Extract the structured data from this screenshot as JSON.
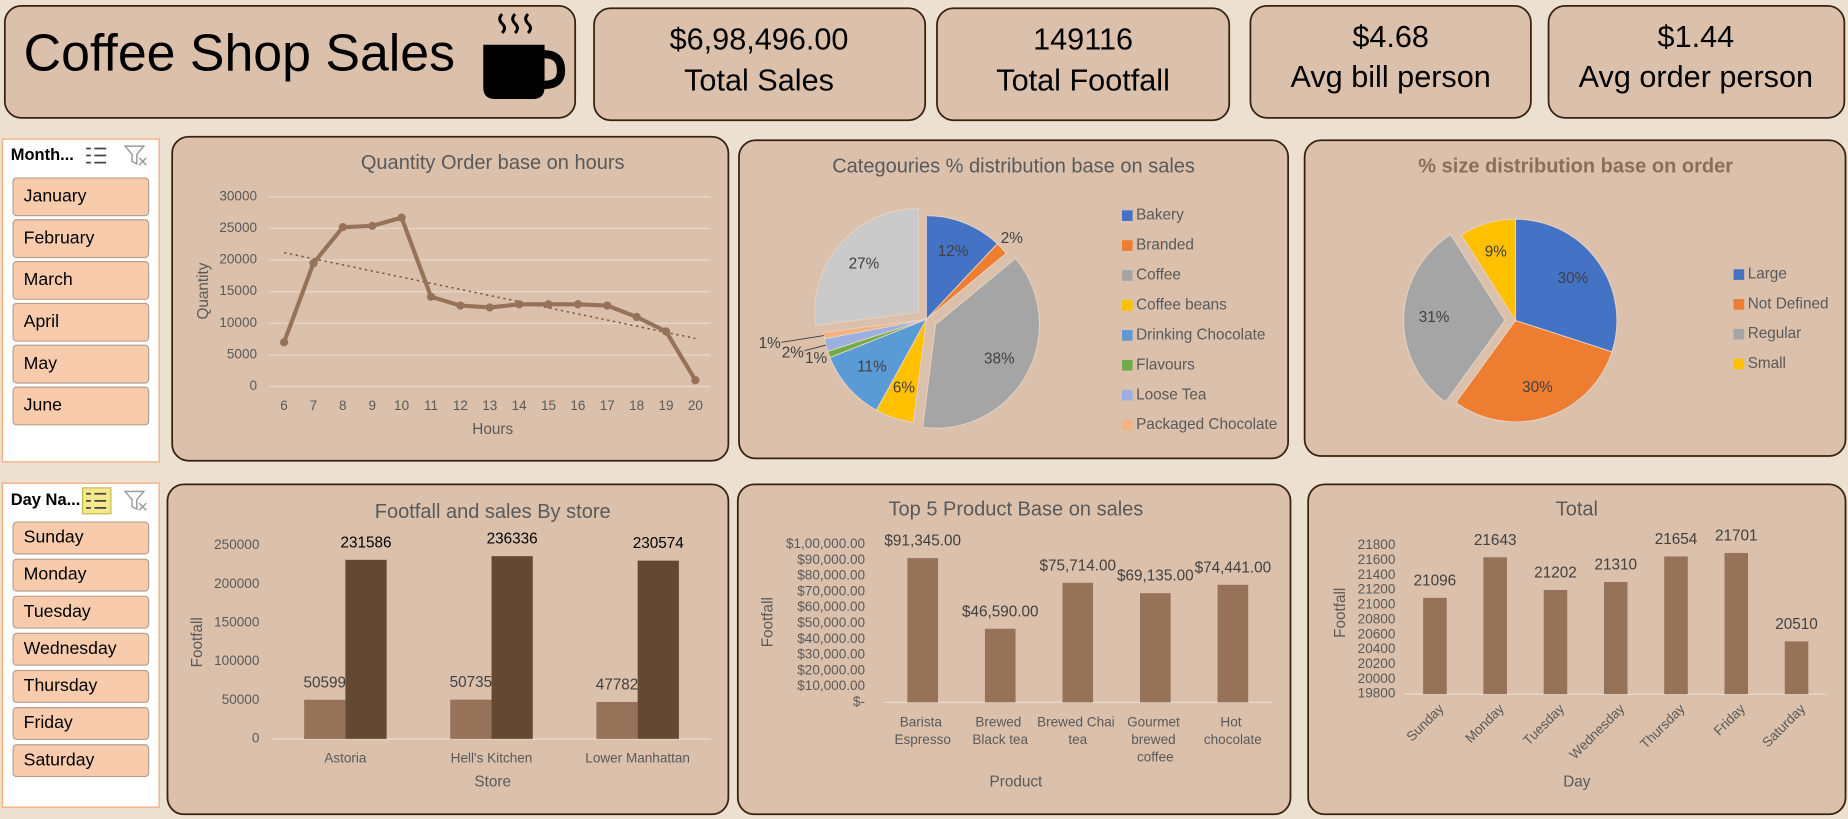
{
  "header": {
    "title": "Coffee Shop Sales"
  },
  "kpis": [
    {
      "value": "$6,98,496.00",
      "label": "Total Sales"
    },
    {
      "value": "149116",
      "label": "Total Footfall"
    },
    {
      "value": "$4.68",
      "label": "Avg bill person"
    },
    {
      "value": "$1.44",
      "label": "Avg order person"
    }
  ],
  "slicers": [
    {
      "title": "Month...",
      "items": [
        "January",
        "February",
        "March",
        "April",
        "May",
        "June"
      ]
    },
    {
      "title": "Day Na...",
      "items": [
        "Sunday",
        "Monday",
        "Tuesday",
        "Wednesday",
        "Thursday",
        "Friday",
        "Saturday"
      ]
    }
  ],
  "chart_data": [
    {
      "type": "line",
      "title": "Quantity Order base on hours",
      "x_label": "Hours",
      "y_label": "Quantity",
      "categories": [
        "6",
        "7",
        "8",
        "9",
        "10",
        "11",
        "12",
        "13",
        "14",
        "15",
        "16",
        "17",
        "18",
        "19",
        "20"
      ],
      "values": [
        7000,
        19500,
        25200,
        25400,
        26700,
        14200,
        12800,
        12500,
        13000,
        13000,
        13000,
        12800,
        11000,
        8700,
        1000
      ],
      "color": "#967259",
      "trendline": true,
      "ylim": [
        0,
        30000
      ],
      "yticks": [
        0,
        5000,
        10000,
        15000,
        20000,
        25000,
        30000
      ],
      "grid": true
    },
    {
      "type": "pie",
      "title": "Categouries % distribution base on sales",
      "categories": [
        "Bakery",
        "Branded",
        "Coffee",
        "Coffee beans",
        "Drinking Chocolate",
        "Flavours",
        "Loose Tea",
        "Packaged Chocolate",
        null
      ],
      "values": [
        12,
        2,
        38,
        6,
        11,
        1,
        2,
        1,
        27
      ],
      "value_labels": [
        "12%",
        "2%",
        "38%",
        "6%",
        "11%",
        "1%",
        "2%",
        "1%",
        "27%"
      ],
      "colors": [
        "#4472c4",
        "#ed7d31",
        "#a5a5a5",
        "#ffc000",
        "#5b9bd5",
        "#70ad47",
        "#9bb0e0",
        "#f4b183",
        "#c9c9c9"
      ],
      "explode": [
        false,
        false,
        true,
        false,
        false,
        false,
        false,
        false,
        true
      ],
      "legend": "right"
    },
    {
      "type": "pie",
      "title": "% size distribution base on order",
      "categories": [
        "Large",
        "Not Defined",
        "Regular",
        "Small"
      ],
      "values": [
        30,
        30,
        31,
        9
      ],
      "value_labels": [
        "30%",
        "30%",
        "31%",
        "9%"
      ],
      "colors": [
        "#4472c4",
        "#ed7d31",
        "#a5a5a5",
        "#ffc000"
      ],
      "explode": [
        false,
        false,
        true,
        false
      ],
      "legend": "right"
    },
    {
      "type": "bar",
      "title": "Footfall and sales By store",
      "x_label": "Store",
      "y_label": "Footfall",
      "categories": [
        "Astoria",
        "Hell's Kitchen",
        "Lower Manhattan"
      ],
      "series": [
        {
          "color": "#967259",
          "values": [
            50599,
            50735,
            47782
          ]
        },
        {
          "color": "#634832",
          "values": [
            231586,
            236336,
            230574
          ]
        }
      ],
      "ylim": [
        0,
        250000
      ],
      "yticks": [
        0,
        50000,
        100000,
        150000,
        200000,
        250000
      ],
      "grid": false
    },
    {
      "type": "bar",
      "title": "Top 5 Product Base on sales",
      "x_label": "Product",
      "y_label": "Footfall",
      "categories": [
        "Barista Espresso",
        "Brewed Black tea",
        "Brewed Chai tea",
        "Gourmet brewed coffee",
        "Hot chocolate"
      ],
      "values": [
        91345,
        46590,
        75714,
        69135,
        74441
      ],
      "value_labels": [
        "$91,345.00",
        "$46,590.00",
        "$75,714.00",
        "$69,135.00",
        "$74,441.00"
      ],
      "color": "#967259",
      "ylim": [
        0,
        100000
      ],
      "yticks": [
        {
          "value": 0,
          "label": "$-"
        },
        {
          "value": 10000,
          "label": "$10,000.00"
        },
        {
          "value": 20000,
          "label": "$20,000.00"
        },
        {
          "value": 30000,
          "label": "$30,000.00"
        },
        {
          "value": 40000,
          "label": "$40,000.00"
        },
        {
          "value": 50000,
          "label": "$50,000.00"
        },
        {
          "value": 60000,
          "label": "$60,000.00"
        },
        {
          "value": 70000,
          "label": "$70,000.00"
        },
        {
          "value": 80000,
          "label": "$80,000.00"
        },
        {
          "value": 90000,
          "label": "$90,000.00"
        },
        {
          "value": 100000,
          "label": "$1,00,000.00"
        }
      ],
      "grid": false
    },
    {
      "type": "bar",
      "title": "Total",
      "x_label": "Day",
      "y_label": "Footfall",
      "categories": [
        "Sunday",
        "Monday",
        "Tuesday",
        "Wednesday",
        "Thursday",
        "Friday",
        "Saturday"
      ],
      "values": [
        21096,
        21643,
        21202,
        21310,
        21654,
        21701,
        20510
      ],
      "color": "#967259",
      "ylim": [
        19800,
        21800
      ],
      "yticks": [
        19800,
        20000,
        20200,
        20400,
        20600,
        20800,
        21000,
        21200,
        21400,
        21600,
        21800
      ],
      "grid": false
    }
  ]
}
